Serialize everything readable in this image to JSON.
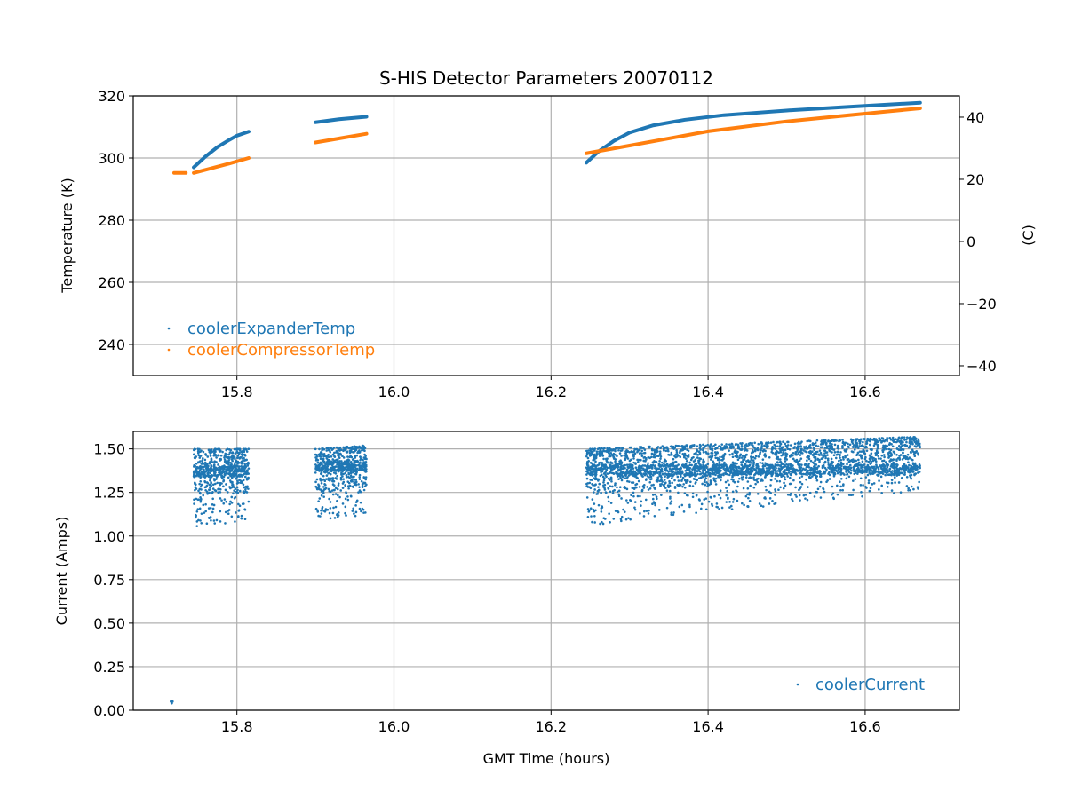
{
  "chart_data": [
    {
      "type": "scatter",
      "title": "S-HIS Detector Parameters 20070112",
      "xlabel": "",
      "ylabel": "Temperature (K)",
      "ylabel_right": "(C)",
      "xlim": [
        15.668,
        16.72
      ],
      "ylim": [
        230,
        320
      ],
      "ylim_right_offset_kelvin": 273.15,
      "xticks": [
        "15.8",
        "16.0",
        "16.2",
        "16.4",
        "16.6"
      ],
      "xtick_values": [
        15.8,
        16.0,
        16.2,
        16.4,
        16.6
      ],
      "yticks": [
        "240",
        "260",
        "280",
        "300",
        "320"
      ],
      "ytick_values": [
        240,
        260,
        280,
        300,
        320
      ],
      "yticks_right": [
        "−40",
        "−20",
        "0",
        "20",
        "40"
      ],
      "ytick_right_values": [
        -40,
        -20,
        0,
        20,
        40
      ],
      "grid": true,
      "legend": "lower-left",
      "series": [
        {
          "name": "coolerExpanderTemp",
          "color": "#1f77b4",
          "segments": [
            [
              [
                15.745,
                297.0
              ],
              [
                15.76,
                300.5
              ],
              [
                15.775,
                303.5
              ],
              [
                15.79,
                305.8
              ],
              [
                15.8,
                307.2
              ],
              [
                15.815,
                308.5
              ]
            ],
            [
              [
                15.9,
                311.5
              ],
              [
                15.93,
                312.5
              ],
              [
                15.965,
                313.3
              ]
            ],
            [
              [
                16.245,
                298.5
              ],
              [
                16.26,
                302.0
              ],
              [
                16.28,
                305.5
              ],
              [
                16.3,
                308.2
              ],
              [
                16.33,
                310.5
              ],
              [
                16.37,
                312.3
              ],
              [
                16.42,
                313.8
              ],
              [
                16.5,
                315.3
              ],
              [
                16.58,
                316.5
              ],
              [
                16.67,
                317.8
              ]
            ]
          ]
        },
        {
          "name": "coolerCompressorTemp",
          "color": "#ff7f0e",
          "segments": [
            [
              [
                15.72,
                295.2
              ],
              [
                15.735,
                295.2
              ]
            ],
            [
              [
                15.745,
                295.2
              ],
              [
                15.76,
                296.2
              ],
              [
                15.79,
                298.2
              ],
              [
                15.815,
                300.0
              ]
            ],
            [
              [
                15.9,
                305.0
              ],
              [
                15.965,
                307.8
              ]
            ],
            [
              [
                16.245,
                301.5
              ],
              [
                16.3,
                304.0
              ],
              [
                16.4,
                308.6
              ],
              [
                16.5,
                311.8
              ],
              [
                16.6,
                314.3
              ],
              [
                16.67,
                316.0
              ]
            ]
          ]
        }
      ]
    },
    {
      "type": "scatter",
      "title": "",
      "xlabel": "GMT Time (hours)",
      "ylabel": "Current (Amps)",
      "xlim": [
        15.668,
        16.72
      ],
      "ylim": [
        0,
        1.6
      ],
      "xticks": [
        "15.8",
        "16.0",
        "16.2",
        "16.4",
        "16.6"
      ],
      "xtick_values": [
        15.8,
        16.0,
        16.2,
        16.4,
        16.6
      ],
      "yticks": [
        "0.00",
        "0.25",
        "0.50",
        "0.75",
        "1.00",
        "1.25",
        "1.50"
      ],
      "ytick_values": [
        0,
        0.25,
        0.5,
        0.75,
        1.0,
        1.25,
        1.5
      ],
      "grid": true,
      "legend": "lower-right",
      "series": [
        {
          "name": "coolerCurrent",
          "color": "#1f77b4",
          "points": [
            [
              15.716,
              0.05
            ],
            [
              15.717,
              0.04
            ],
            [
              15.718,
              0.05
            ]
          ],
          "clusters": [
            {
              "x": [
                15.745,
                15.815
              ],
              "y_low": [
                1.05,
                1.07
              ],
              "y_high": [
                1.5,
                1.5
              ],
              "band": 1.37,
              "count": 700
            },
            {
              "x": [
                15.9,
                15.965
              ],
              "y_low": [
                1.09,
                1.12
              ],
              "y_high": [
                1.5,
                1.52
              ],
              "band": 1.4,
              "count": 700
            },
            {
              "x": [
                16.245,
                16.67
              ],
              "y_low": [
                1.06,
                1.26
              ],
              "y_high": [
                1.5,
                1.57
              ],
              "band": 1.38,
              "count": 3200
            }
          ]
        }
      ]
    }
  ]
}
